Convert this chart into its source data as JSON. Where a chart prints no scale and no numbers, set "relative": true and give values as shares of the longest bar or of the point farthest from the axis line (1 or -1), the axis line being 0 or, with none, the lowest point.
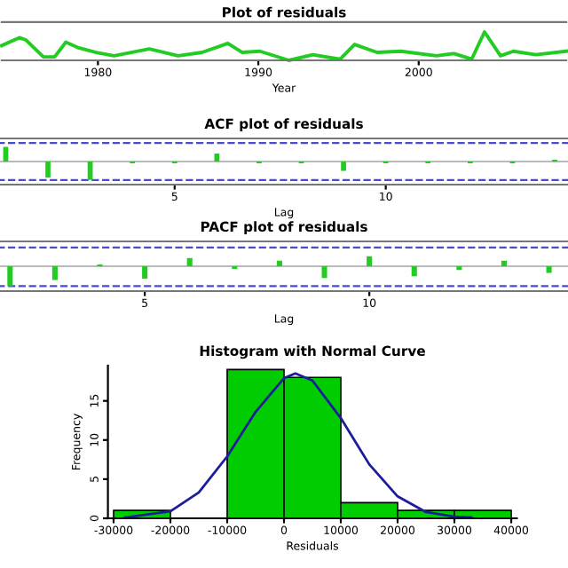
{
  "chart_data": [
    {
      "type": "line",
      "title": "Plot of residuals",
      "xlabel": "Year",
      "relative": true,
      "xlim": [
        1974,
        2009.2
      ],
      "xticks": [
        1980,
        1990,
        2000
      ],
      "grid": false,
      "marker": "none",
      "line_style": "solid",
      "x": [
        1974.0,
        1975.1,
        1975.5,
        1976.6,
        1977.3,
        1978.0,
        1978.8,
        1979.9,
        1981.0,
        1983.2,
        1985.0,
        1986.5,
        1988.1,
        1989.0,
        1990.1,
        1991.9,
        1993.4,
        1995.1,
        1996.0,
        1997.4,
        1998.9,
        2001.1,
        2002.2,
        2003.3,
        2004.1,
        2005.1,
        2005.9,
        2007.3,
        2009.2
      ],
      "series": [
        {
          "color": "#22cc22",
          "values": [
            0.52,
            0.8,
            0.72,
            0.12,
            0.12,
            0.64,
            0.44,
            0.28,
            0.16,
            0.4,
            0.16,
            0.28,
            0.6,
            0.28,
            0.32,
            0,
            0.2,
            0.04,
            0.56,
            0.28,
            0.32,
            0.16,
            0.24,
            0.04,
            1,
            0.16,
            0.32,
            0.2,
            0.32
          ]
        }
      ]
    },
    {
      "type": "bar",
      "title": "ACF plot of residuals",
      "xlabel": "Lag",
      "relative": true,
      "xlim": [
        0.73,
        14.45
      ],
      "xticks": [
        5,
        10
      ],
      "grid": false,
      "x": [
        1,
        2,
        3,
        4,
        5,
        6,
        7,
        8,
        9,
        10,
        11,
        12,
        13,
        14
      ],
      "series": [
        {
          "color": "#22cc22",
          "values": [
            0.79,
            -0.86,
            -1,
            -0.1,
            -0.1,
            0.43,
            -0.1,
            -0.1,
            -0.5,
            -0.1,
            -0.1,
            -0.1,
            -0.1,
            0.1
          ]
        }
      ],
      "ref_lines": [
        {
          "axis": "y",
          "value": 1.0,
          "color": "#4b4bd0",
          "line_style": "dashed"
        },
        {
          "axis": "y",
          "value": -1.0,
          "color": "#4b4bd0",
          "line_style": "dashed"
        }
      ]
    },
    {
      "type": "bar",
      "title": "PACF plot of residuals",
      "xlabel": "Lag",
      "relative": true,
      "xlim": [
        1.65,
        14.55
      ],
      "xticks": [
        5,
        10
      ],
      "grid": false,
      "x": [
        2,
        3,
        4,
        5,
        6,
        7,
        8,
        9,
        10,
        11,
        12,
        13,
        14
      ],
      "series": [
        {
          "color": "#22cc22",
          "values": [
            -1,
            -0.69,
            0.09,
            -0.63,
            0.41,
            -0.13,
            0.28,
            -0.59,
            0.5,
            -0.5,
            -0.19,
            0.28,
            -0.34
          ]
        }
      ],
      "ref_lines": [
        {
          "axis": "y",
          "value": 0.94,
          "color": "#4b4bd0",
          "line_style": "dashed"
        },
        {
          "axis": "y",
          "value": -1.0,
          "color": "#4b4bd0",
          "line_style": "dashed"
        }
      ]
    },
    {
      "type": "histogram",
      "title": "Histogram with Normal Curve",
      "xlabel": "Residuals",
      "ylabel": "Frequency",
      "grid": false,
      "bins": [
        -30000,
        -20000,
        -10000,
        0,
        10000,
        20000,
        30000,
        40000
      ],
      "values": [
        1,
        0,
        19,
        18,
        2,
        1,
        1
      ],
      "color": "#00cc00",
      "xlim": [
        -31000,
        41000
      ],
      "xticks": [
        -30000,
        -20000,
        -10000,
        0,
        10000,
        20000,
        30000,
        40000
      ],
      "ylim": [
        0,
        19.5
      ],
      "yticks": [
        0,
        5,
        10,
        15
      ],
      "series": [
        {
          "type": "line",
          "color": "#1c1c9c",
          "x": [
            -28000,
            -20000,
            -15000,
            -10000,
            -5000,
            0,
            2000,
            5000,
            10000,
            15000,
            20000,
            25000,
            30000,
            33000
          ],
          "values": [
            0.1,
            0.9,
            3.3,
            7.9,
            13.6,
            17.9,
            18.5,
            17.6,
            12.8,
            6.9,
            2.8,
            0.8,
            0.2,
            0.1
          ]
        }
      ]
    }
  ]
}
